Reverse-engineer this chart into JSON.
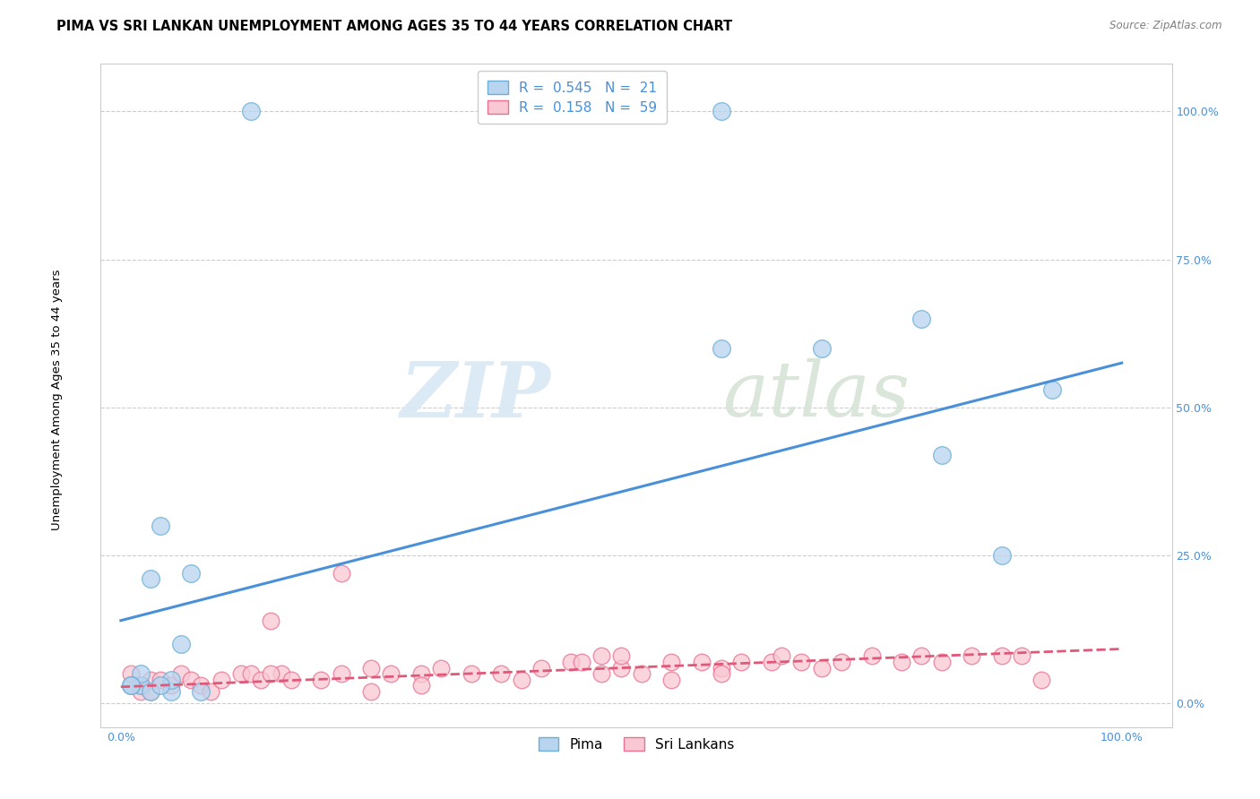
{
  "title": "PIMA VS SRI LANKAN UNEMPLOYMENT AMONG AGES 35 TO 44 YEARS CORRELATION CHART",
  "source": "Source: ZipAtlas.com",
  "ylabel": "Unemployment Among Ages 35 to 44 years",
  "xlim": [
    -0.02,
    1.05
  ],
  "ylim": [
    -0.04,
    1.08
  ],
  "xtick_positions": [
    0.0,
    1.0
  ],
  "xtick_labels": [
    "0.0%",
    "100.0%"
  ],
  "ytick_positions": [
    0.0,
    0.25,
    0.5,
    0.75,
    1.0
  ],
  "ytick_labels": [
    "0.0%",
    "25.0%",
    "50.0%",
    "75.0%",
    "100.0%"
  ],
  "pima_R": "0.545",
  "pima_N": "21",
  "sri_R": "0.158",
  "sri_N": "59",
  "pima_color": "#b8d4ee",
  "pima_edge_color": "#6aaed6",
  "pima_line_color": "#4a90d9",
  "sri_color": "#f9c8d4",
  "sri_edge_color": "#e87090",
  "sri_line_color": "#e05878",
  "legend_pima_label": "Pima",
  "legend_sri_label": "Sri Lankans",
  "watermark_zip": "ZIP",
  "watermark_atlas": "atlas",
  "pima_scatter_x": [
    0.13,
    0.04,
    0.05,
    0.02,
    0.03,
    0.02,
    0.01,
    0.05,
    0.03,
    0.01,
    0.04,
    0.06,
    0.6,
    0.8,
    0.6,
    0.82,
    0.88,
    0.93,
    0.07,
    0.08,
    0.7
  ],
  "pima_scatter_y": [
    1.0,
    0.3,
    0.02,
    0.03,
    0.21,
    0.05,
    0.03,
    0.04,
    0.02,
    0.03,
    0.03,
    0.1,
    1.0,
    0.65,
    0.6,
    0.42,
    0.25,
    0.53,
    0.22,
    0.02,
    0.6
  ],
  "pima_line_x": [
    0.0,
    1.0
  ],
  "pima_line_y": [
    0.14,
    0.575
  ],
  "sri_scatter_x": [
    0.01,
    0.02,
    0.03,
    0.01,
    0.02,
    0.03,
    0.04,
    0.05,
    0.06,
    0.07,
    0.08,
    0.09,
    0.1,
    0.12,
    0.13,
    0.14,
    0.15,
    0.16,
    0.17,
    0.2,
    0.22,
    0.25,
    0.27,
    0.3,
    0.32,
    0.35,
    0.38,
    0.4,
    0.42,
    0.45,
    0.46,
    0.48,
    0.5,
    0.52,
    0.55,
    0.58,
    0.6,
    0.62,
    0.65,
    0.66,
    0.68,
    0.7,
    0.72,
    0.75,
    0.78,
    0.8,
    0.82,
    0.85,
    0.88,
    0.9,
    0.22,
    0.5,
    0.55,
    0.6,
    0.25,
    0.3,
    0.48,
    0.92,
    0.15
  ],
  "sri_scatter_y": [
    0.03,
    0.02,
    0.04,
    0.05,
    0.03,
    0.02,
    0.04,
    0.03,
    0.05,
    0.04,
    0.03,
    0.02,
    0.04,
    0.05,
    0.05,
    0.04,
    0.14,
    0.05,
    0.04,
    0.04,
    0.05,
    0.06,
    0.05,
    0.05,
    0.06,
    0.05,
    0.05,
    0.04,
    0.06,
    0.07,
    0.07,
    0.05,
    0.06,
    0.05,
    0.07,
    0.07,
    0.06,
    0.07,
    0.07,
    0.08,
    0.07,
    0.06,
    0.07,
    0.08,
    0.07,
    0.08,
    0.07,
    0.08,
    0.08,
    0.08,
    0.22,
    0.08,
    0.04,
    0.05,
    0.02,
    0.03,
    0.08,
    0.04,
    0.05
  ],
  "sri_line_x": [
    0.0,
    1.0
  ],
  "sri_line_y": [
    0.028,
    0.092
  ],
  "background_color": "#ffffff",
  "grid_color": "#cccccc",
  "title_fontsize": 10.5,
  "axis_label_fontsize": 9.5,
  "tick_fontsize": 9,
  "tick_color": "#4a90d9",
  "legend_fontsize": 11
}
